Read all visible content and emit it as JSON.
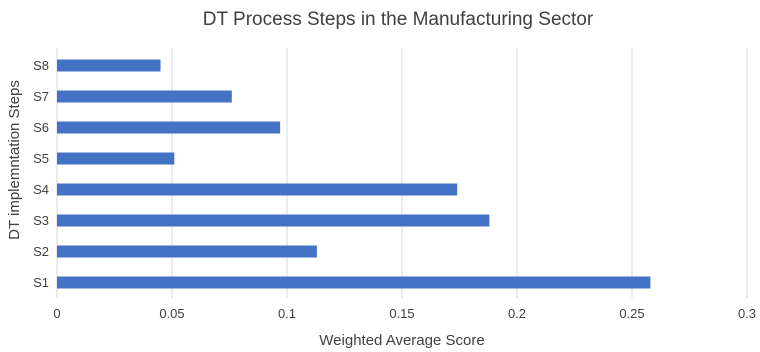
{
  "chart_data": {
    "type": "bar",
    "orientation": "horizontal",
    "title": "DT Process Steps in the Manufacturing Sector",
    "xlabel": "Weighted Average Score",
    "ylabel": "DT implemntation Steps",
    "categories": [
      "S1",
      "S2",
      "S3",
      "S4",
      "S5",
      "S6",
      "S7",
      "S8"
    ],
    "values": [
      0.258,
      0.113,
      0.188,
      0.174,
      0.051,
      0.097,
      0.076,
      0.045
    ],
    "xlim": [
      0,
      0.3
    ],
    "xticks": [
      "0",
      "0.05",
      "0.1",
      "0.15",
      "0.2",
      "0.25",
      "0.3"
    ],
    "grid": true,
    "bar_color": "#4472c4",
    "legend": "none"
  }
}
